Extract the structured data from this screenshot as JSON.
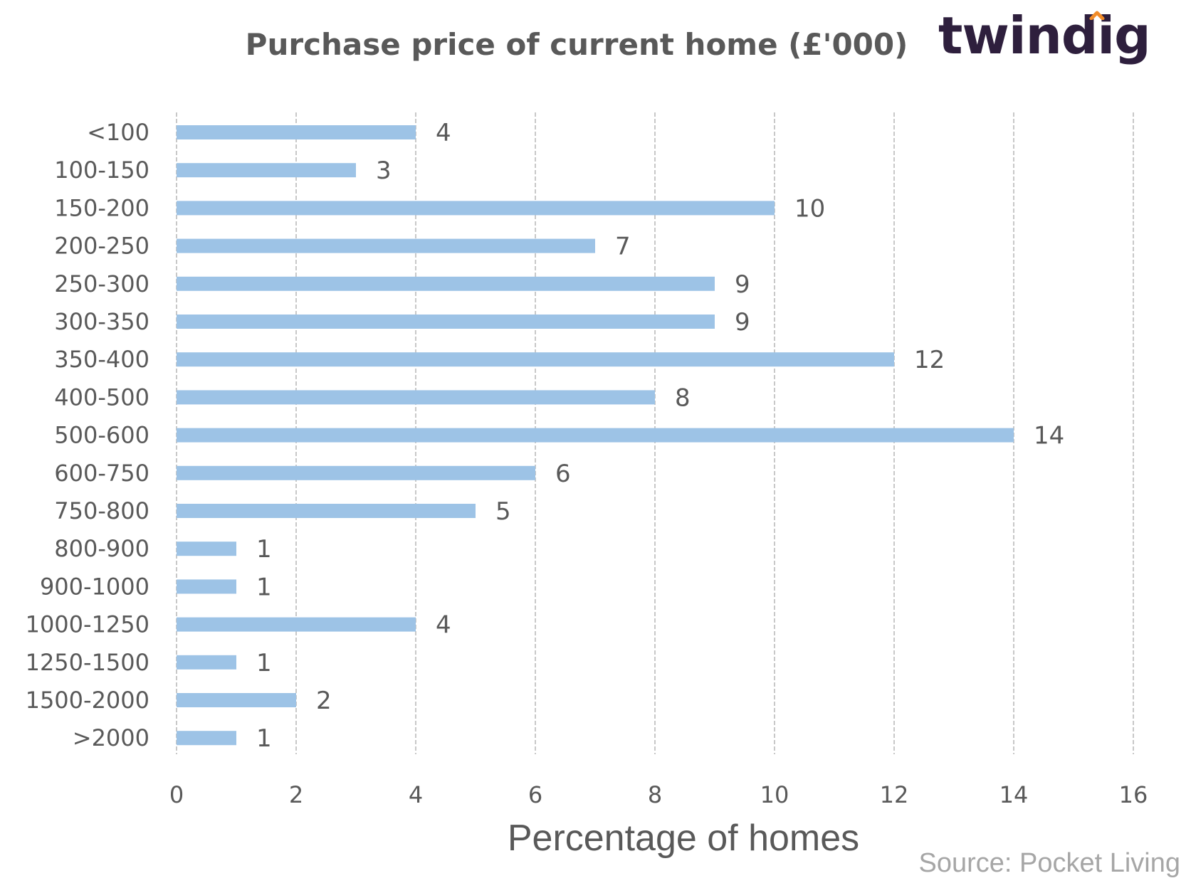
{
  "logo": {
    "text": "twindig",
    "accent_color": "#f28c28",
    "text_color": "#2e1f3d"
  },
  "source": "Source: Pocket Living",
  "chart_data": {
    "type": "bar",
    "orientation": "horizontal",
    "title": "Purchase price of current home (£'000)",
    "xlabel": "Percentage of homes",
    "ylabel": "",
    "categories": [
      "<100",
      "100-150",
      "150-200",
      "200-250",
      "250-300",
      "300-350",
      "350-400",
      "400-500",
      "500-600",
      "600-750",
      "750-800",
      "800-900",
      "900-1000",
      "1000-1250",
      "1250-1500",
      "1500-2000",
      ">2000"
    ],
    "values": [
      4,
      3,
      10,
      7,
      9,
      9,
      12,
      8,
      14,
      6,
      5,
      1,
      1,
      4,
      1,
      2,
      1
    ],
    "xlim": [
      0,
      16
    ],
    "xticks": [
      0,
      2,
      4,
      6,
      8,
      10,
      12,
      14,
      16
    ],
    "grid": "vertical-dashed",
    "legend": "none",
    "bar_color": "#9dc3e6",
    "grid_color": "#c8c8c8"
  }
}
